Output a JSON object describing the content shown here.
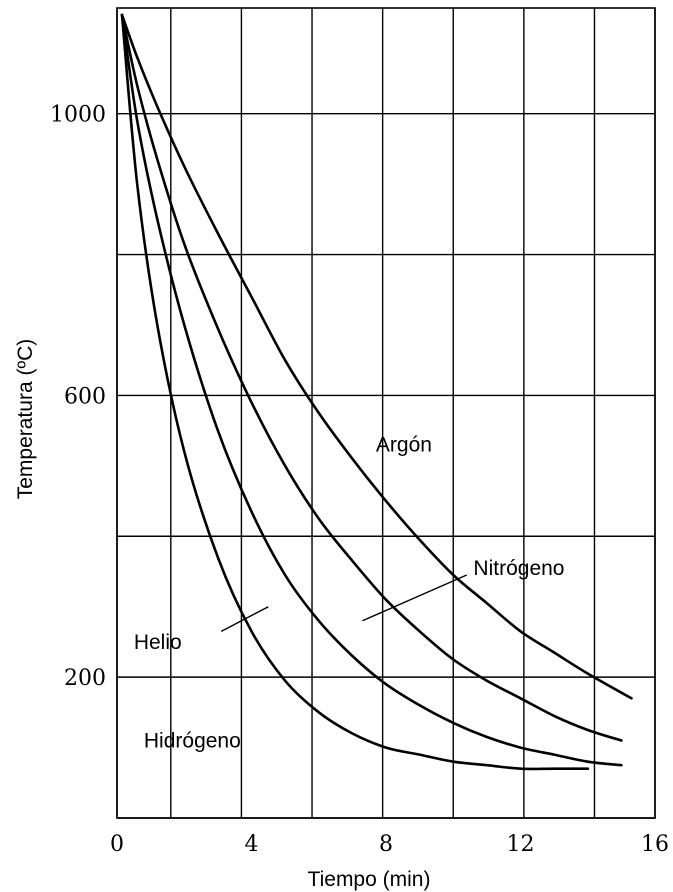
{
  "chart_data": {
    "type": "line",
    "title": "",
    "xlabel": "Tiempo (min)",
    "ylabel": "Temperatura (ºC)",
    "xlim": [
      0,
      16
    ],
    "ylim": [
      0,
      1150
    ],
    "x_ticks": [
      0,
      4,
      8,
      12,
      16
    ],
    "x_tick_labels": [
      "0",
      "4",
      "8",
      "12",
      "16"
    ],
    "y_ticks": [
      200,
      600,
      1000
    ],
    "y_tick_labels": [
      "200",
      "600",
      "1000"
    ],
    "x_grid": [
      0,
      1.6,
      3.7,
      5.8,
      7.9,
      10,
      12.1,
      14.2,
      16
    ],
    "y_grid": [
      0,
      200,
      400,
      600,
      800,
      1000
    ],
    "grid": true,
    "legend": "none",
    "series": [
      {
        "name": "Argón",
        "x": [
          0.15,
          0.6,
          1.2,
          2,
          3,
          4,
          5,
          6,
          7,
          8,
          9,
          10,
          11,
          12,
          13,
          14,
          15.3
        ],
        "y": [
          1140,
          1080,
          1010,
          925,
          830,
          740,
          650,
          575,
          510,
          450,
          395,
          345,
          305,
          265,
          235,
          205,
          170
        ]
      },
      {
        "name": "Nitrógeno",
        "x": [
          0.15,
          0.6,
          1.2,
          2,
          3,
          4,
          5,
          6,
          7,
          8,
          9,
          10,
          11,
          12,
          13,
          14,
          15
        ],
        "y": [
          1140,
          1040,
          935,
          815,
          695,
          590,
          500,
          425,
          365,
          310,
          265,
          225,
          195,
          170,
          145,
          125,
          110
        ]
      },
      {
        "name": "Helio",
        "x": [
          0.15,
          0.6,
          1.2,
          2,
          3,
          4,
          5,
          6,
          7,
          8,
          9,
          10,
          11,
          12,
          13,
          14,
          15
        ],
        "y": [
          1140,
          990,
          850,
          700,
          550,
          435,
          345,
          280,
          230,
          190,
          160,
          135,
          115,
          100,
          90,
          80,
          75
        ]
      },
      {
        "name": "Hidrógeno",
        "x": [
          0.15,
          0.6,
          1.2,
          2,
          3,
          4,
          5,
          6,
          7,
          8,
          9,
          10,
          11,
          12,
          13,
          14
        ],
        "y": [
          1140,
          900,
          700,
          520,
          370,
          265,
          195,
          150,
          120,
          100,
          90,
          80,
          75,
          70,
          70,
          70
        ]
      }
    ],
    "annotations": [
      {
        "text": "Argón",
        "x": 7.7,
        "y": 520,
        "leader": null
      },
      {
        "text": "Nitrógeno",
        "x": 10.6,
        "y": 345,
        "leader": [
          [
            7.3,
            280
          ],
          [
            10.4,
            345
          ]
        ]
      },
      {
        "text": "Helio",
        "x": 0.5,
        "y": 240,
        "leader": [
          [
            3.1,
            265
          ],
          [
            4.5,
            300
          ]
        ]
      },
      {
        "text": "Hidrógeno",
        "x": 0.8,
        "y": 100,
        "leader": null
      }
    ]
  }
}
